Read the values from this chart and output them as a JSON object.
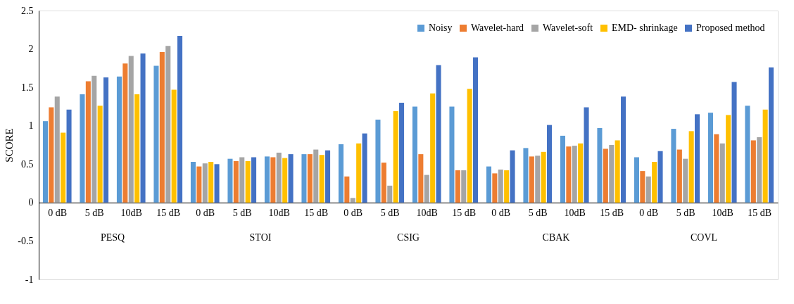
{
  "chart_data": {
    "type": "bar",
    "ylabel": "SCORE",
    "categories": [
      "0 dB",
      "5 dB",
      "10dB",
      "15 dB",
      "0 dB",
      "5 dB",
      "10dB",
      "15 dB",
      "0 dB",
      "5 dB",
      "10dB",
      "15 dB",
      "0 dB",
      "5 dB",
      "10dB",
      "15 dB",
      "0 dB",
      "5 dB",
      "10dB",
      "15 dB"
    ],
    "annotations": [
      "PESQ",
      "STOI",
      "CSIG",
      "CBAK",
      "COVL"
    ],
    "series": [
      {
        "name": "Noisy",
        "color": "#5b9bd5",
        "values": [
          1.06,
          1.41,
          1.64,
          1.78,
          0.53,
          0.57,
          0.6,
          0.63,
          0.76,
          1.08,
          1.25,
          1.25,
          0.47,
          0.71,
          0.87,
          0.97,
          0.59,
          0.96,
          1.17,
          1.26
        ]
      },
      {
        "name": "Wavelet-hard",
        "color": "#ed7d31",
        "values": [
          1.24,
          1.58,
          1.81,
          1.96,
          0.47,
          0.54,
          0.59,
          0.63,
          0.34,
          0.52,
          0.63,
          0.42,
          0.38,
          0.6,
          0.73,
          0.7,
          0.41,
          0.69,
          0.89,
          0.81
        ]
      },
      {
        "name": "Wavelet-soft",
        "color": "#a5a5a5",
        "values": [
          1.38,
          1.65,
          1.91,
          2.04,
          0.51,
          0.59,
          0.65,
          0.69,
          0.06,
          0.22,
          0.36,
          0.42,
          0.43,
          0.61,
          0.74,
          0.75,
          0.34,
          0.57,
          0.77,
          0.85
        ]
      },
      {
        "name": "EMD- shrinkage",
        "color": "#ffc000",
        "values": [
          0.91,
          1.26,
          1.41,
          1.47,
          0.53,
          0.54,
          0.58,
          0.62,
          0.77,
          1.19,
          1.42,
          1.48,
          0.42,
          0.66,
          0.77,
          0.81,
          0.53,
          0.93,
          1.14,
          1.21
        ]
      },
      {
        "name": "Proposed method",
        "color": "#4472c4",
        "values": [
          1.21,
          1.63,
          1.94,
          2.17,
          0.5,
          0.59,
          0.63,
          0.68,
          0.9,
          1.3,
          1.79,
          1.89,
          0.68,
          1.01,
          1.24,
          1.38,
          0.67,
          1.15,
          1.57,
          1.76
        ]
      }
    ],
    "ylim": [
      -1,
      2.5
    ],
    "yticks": [
      -1,
      -0.5,
      0,
      0.5,
      1,
      1.5,
      2,
      2.5
    ],
    "grid": false,
    "legend": "top right"
  }
}
